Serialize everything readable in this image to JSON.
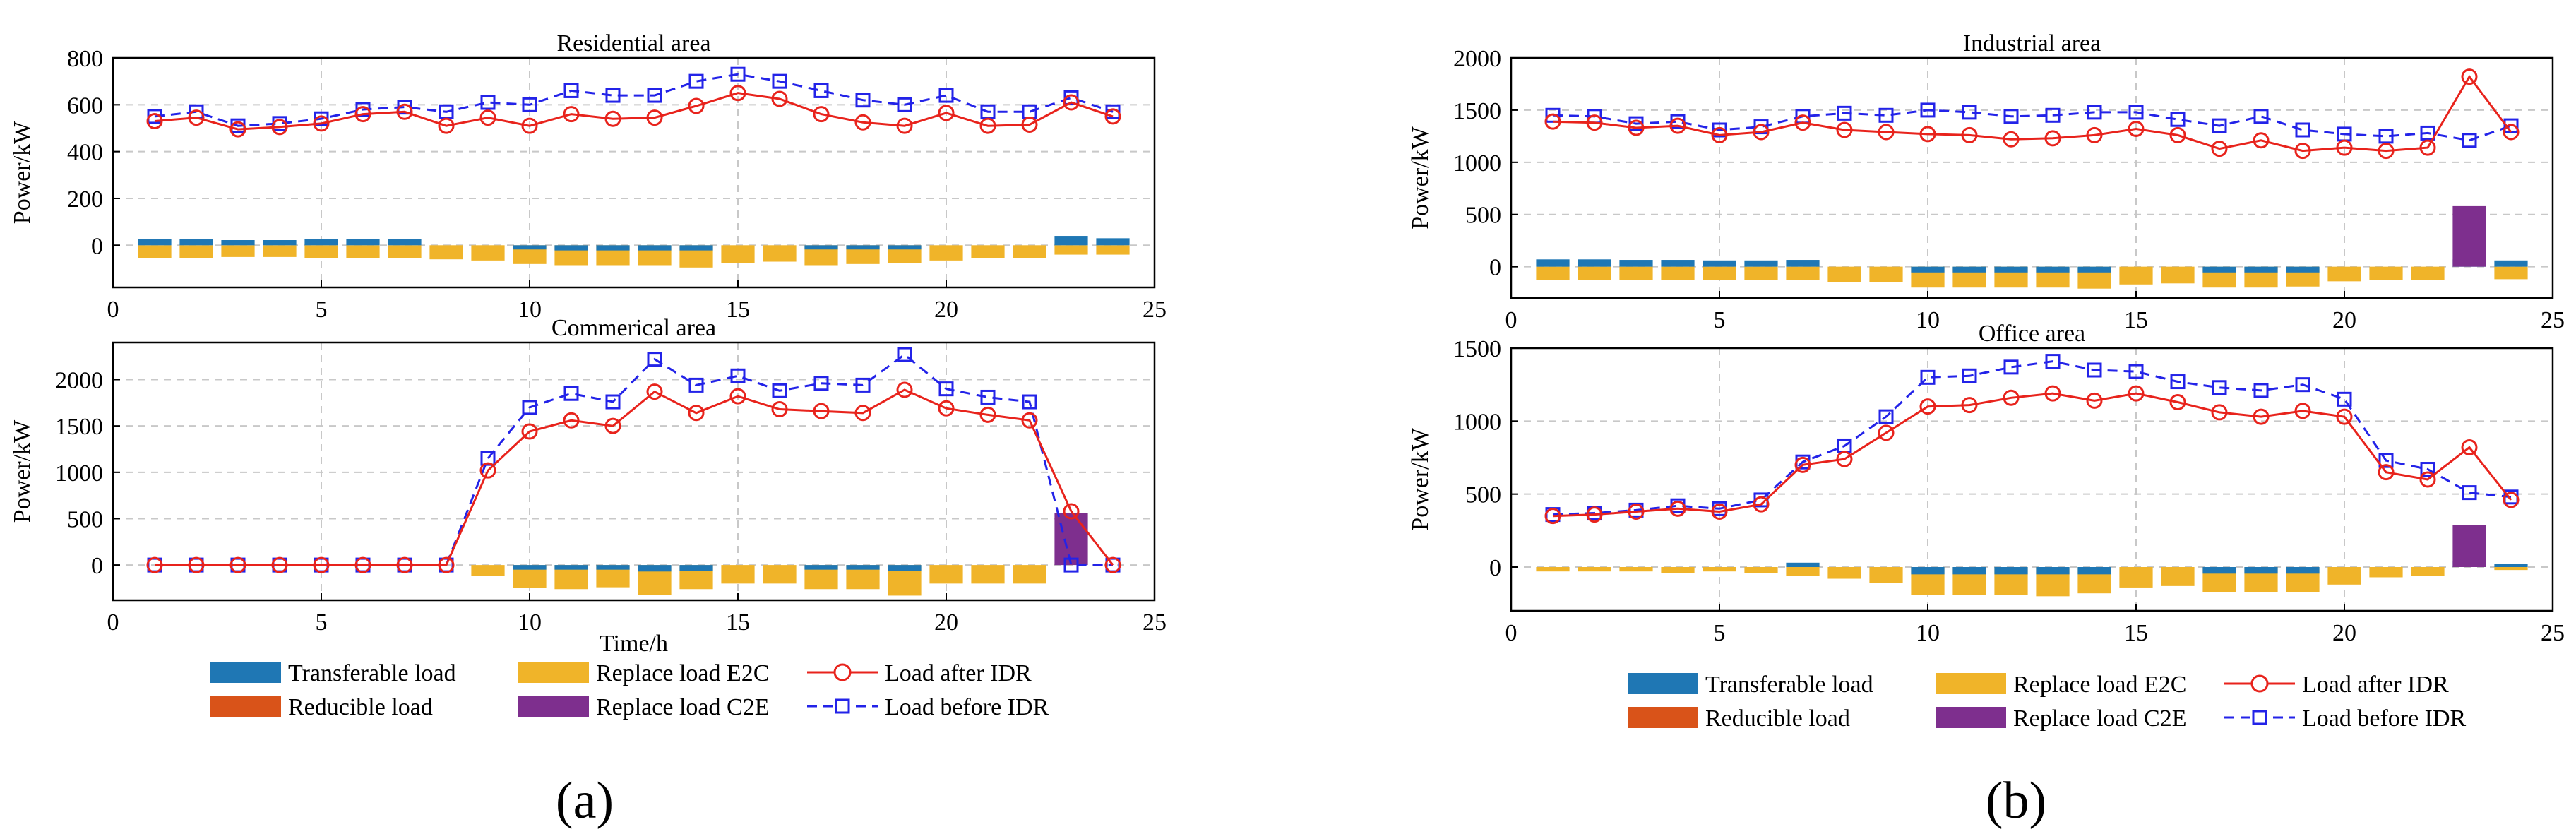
{
  "panels": [
    {
      "label": "(a)"
    },
    {
      "label": "(b)"
    }
  ],
  "legend": {
    "items": [
      {
        "key": "transferable",
        "label": "Transferable load",
        "color": "#1f77b4",
        "kind": "bar"
      },
      {
        "key": "e2c",
        "label": "Replace load E2C",
        "color": "#f0b429",
        "kind": "bar"
      },
      {
        "key": "after",
        "label": "Load after IDR",
        "color": "#e8231c",
        "kind": "line-circle"
      },
      {
        "key": "reducible",
        "label": "Reducible load",
        "color": "#d95319",
        "kind": "bar"
      },
      {
        "key": "c2e",
        "label": "Replace load C2E",
        "color": "#7e2f8e",
        "kind": "bar"
      },
      {
        "key": "before",
        "label": "Load before IDR",
        "color": "#2323e8",
        "kind": "line-square"
      }
    ]
  },
  "chart_data": [
    {
      "type": "line+bar",
      "title": "Residential area",
      "xlabel": "",
      "ylabel": "Power/kW",
      "xlim": [
        0,
        25
      ],
      "ylim": [
        -180,
        800
      ],
      "xticks": [
        0,
        5,
        10,
        15,
        20,
        25
      ],
      "yticks": [
        0,
        200,
        400,
        600,
        800
      ],
      "x": [
        1,
        2,
        3,
        4,
        5,
        6,
        7,
        8,
        9,
        10,
        11,
        12,
        13,
        14,
        15,
        16,
        17,
        18,
        19,
        20,
        21,
        22,
        23,
        24
      ],
      "series": [
        {
          "name": "Load before IDR",
          "values": [
            550,
            570,
            510,
            520,
            540,
            580,
            590,
            570,
            610,
            600,
            660,
            640,
            640,
            700,
            730,
            700,
            660,
            620,
            600,
            640,
            570,
            570,
            630,
            570
          ]
        },
        {
          "name": "Load after IDR",
          "values": [
            530,
            545,
            495,
            505,
            520,
            560,
            570,
            510,
            545,
            510,
            560,
            540,
            545,
            595,
            650,
            625,
            560,
            525,
            510,
            565,
            510,
            515,
            610,
            550
          ]
        },
        {
          "name": "Transferable load",
          "values": [
            25,
            25,
            22,
            22,
            25,
            25,
            25,
            0,
            0,
            -18,
            -22,
            -22,
            -22,
            -22,
            0,
            0,
            -18,
            -18,
            -18,
            0,
            0,
            0,
            40,
            30
          ]
        },
        {
          "name": "Replace load E2C",
          "values": [
            -55,
            -55,
            -50,
            -50,
            -55,
            -55,
            -55,
            -60,
            -65,
            -80,
            -85,
            -85,
            -85,
            -95,
            -75,
            -70,
            -85,
            -80,
            -75,
            -65,
            -55,
            -55,
            -40,
            -40
          ]
        },
        {
          "name": "Reducible load",
          "values": [
            0,
            0,
            0,
            0,
            0,
            0,
            0,
            0,
            0,
            0,
            0,
            0,
            0,
            0,
            0,
            0,
            0,
            0,
            0,
            0,
            0,
            0,
            0,
            0
          ]
        },
        {
          "name": "Replace load C2E",
          "values": [
            0,
            0,
            0,
            0,
            0,
            0,
            0,
            0,
            0,
            0,
            0,
            0,
            0,
            0,
            0,
            0,
            0,
            0,
            0,
            0,
            0,
            0,
            0,
            0
          ]
        }
      ]
    },
    {
      "type": "line+bar",
      "title": "Commerical area",
      "xlabel": "Time/h",
      "ylabel": "Power/kW",
      "xlim": [
        0,
        25
      ],
      "ylim": [
        -380,
        2400
      ],
      "xticks": [
        0,
        5,
        10,
        15,
        20,
        25
      ],
      "yticks": [
        0,
        500,
        1000,
        1500,
        2000
      ],
      "x": [
        1,
        2,
        3,
        4,
        5,
        6,
        7,
        8,
        9,
        10,
        11,
        12,
        13,
        14,
        15,
        16,
        17,
        18,
        19,
        20,
        21,
        22,
        23,
        24
      ],
      "series": [
        {
          "name": "Load before IDR",
          "values": [
            0,
            0,
            0,
            0,
            0,
            0,
            0,
            0,
            1150,
            1700,
            1850,
            1760,
            2220,
            1940,
            2040,
            1880,
            1960,
            1940,
            2270,
            1900,
            1810,
            1760,
            0,
            0
          ]
        },
        {
          "name": "Load after IDR",
          "values": [
            0,
            0,
            0,
            0,
            0,
            0,
            0,
            0,
            1020,
            1440,
            1560,
            1500,
            1870,
            1640,
            1820,
            1680,
            1660,
            1640,
            1890,
            1690,
            1620,
            1560,
            580,
            0
          ]
        },
        {
          "name": "Transferable load",
          "values": [
            0,
            0,
            0,
            0,
            0,
            0,
            0,
            0,
            0,
            -50,
            -50,
            -50,
            -70,
            -60,
            0,
            0,
            -50,
            -50,
            -60,
            0,
            0,
            0,
            0,
            0
          ]
        },
        {
          "name": "Replace load E2C",
          "values": [
            0,
            0,
            0,
            0,
            0,
            0,
            0,
            0,
            -120,
            -250,
            -260,
            -240,
            -320,
            -260,
            -200,
            -200,
            -260,
            -260,
            -330,
            -200,
            -200,
            -200,
            0,
            0
          ]
        },
        {
          "name": "Reducible load",
          "values": [
            0,
            0,
            0,
            0,
            0,
            0,
            0,
            0,
            0,
            0,
            0,
            0,
            0,
            0,
            0,
            0,
            0,
            0,
            0,
            0,
            0,
            0,
            0,
            0
          ]
        },
        {
          "name": "Replace load C2E",
          "values": [
            0,
            0,
            0,
            0,
            0,
            0,
            0,
            0,
            0,
            0,
            0,
            0,
            0,
            0,
            0,
            0,
            0,
            0,
            0,
            0,
            0,
            0,
            560,
            0
          ]
        }
      ]
    },
    {
      "type": "line+bar",
      "title": "Industrial area",
      "xlabel": "",
      "ylabel": "Power/kW",
      "xlim": [
        0,
        25
      ],
      "ylim": [
        -300,
        2000
      ],
      "xticks": [
        0,
        5,
        10,
        15,
        20,
        25
      ],
      "yticks": [
        0,
        500,
        1000,
        1500,
        2000
      ],
      "x": [
        1,
        2,
        3,
        4,
        5,
        6,
        7,
        8,
        9,
        10,
        11,
        12,
        13,
        14,
        15,
        16,
        17,
        18,
        19,
        20,
        21,
        22,
        23,
        24
      ],
      "series": [
        {
          "name": "Load before IDR",
          "values": [
            1450,
            1440,
            1370,
            1390,
            1310,
            1340,
            1440,
            1470,
            1450,
            1500,
            1480,
            1440,
            1450,
            1480,
            1480,
            1410,
            1350,
            1440,
            1310,
            1270,
            1250,
            1280,
            1210,
            1350
          ]
        },
        {
          "name": "Load after IDR",
          "values": [
            1390,
            1380,
            1330,
            1350,
            1260,
            1290,
            1380,
            1310,
            1290,
            1270,
            1260,
            1220,
            1230,
            1260,
            1320,
            1260,
            1130,
            1210,
            1110,
            1140,
            1110,
            1140,
            1820,
            1290
          ]
        },
        {
          "name": "Transferable load",
          "values": [
            70,
            70,
            65,
            65,
            60,
            60,
            65,
            0,
            0,
            -55,
            -55,
            -55,
            -55,
            -55,
            0,
            0,
            -55,
            -55,
            -55,
            0,
            0,
            0,
            70,
            60
          ]
        },
        {
          "name": "Replace load E2C",
          "values": [
            -130,
            -130,
            -130,
            -130,
            -130,
            -130,
            -130,
            -150,
            -150,
            -200,
            -200,
            -200,
            -200,
            -210,
            -170,
            -160,
            -200,
            -200,
            -190,
            -140,
            -130,
            -130,
            0,
            -120
          ]
        },
        {
          "name": "Reducible load",
          "values": [
            0,
            0,
            0,
            0,
            0,
            0,
            0,
            0,
            0,
            0,
            0,
            0,
            0,
            0,
            0,
            0,
            0,
            0,
            0,
            0,
            0,
            0,
            0,
            0
          ]
        },
        {
          "name": "Replace load C2E",
          "values": [
            0,
            0,
            0,
            0,
            0,
            0,
            0,
            0,
            0,
            0,
            0,
            0,
            0,
            0,
            0,
            0,
            0,
            0,
            0,
            0,
            0,
            0,
            580,
            0
          ]
        }
      ]
    },
    {
      "type": "line+bar",
      "title": "Office area",
      "xlabel": "",
      "ylabel": "Power/kW",
      "xlim": [
        0,
        25
      ],
      "ylim": [
        -300,
        1500
      ],
      "xticks": [
        0,
        5,
        10,
        15,
        20,
        25
      ],
      "yticks": [
        0,
        500,
        1000,
        1500
      ],
      "x": [
        1,
        2,
        3,
        4,
        5,
        6,
        7,
        8,
        9,
        10,
        11,
        12,
        13,
        14,
        15,
        16,
        17,
        18,
        19,
        20,
        21,
        22,
        23,
        24
      ],
      "series": [
        {
          "name": "Load before IDR",
          "values": [
            360,
            370,
            390,
            420,
            400,
            460,
            720,
            830,
            1030,
            1300,
            1310,
            1370,
            1410,
            1350,
            1340,
            1270,
            1230,
            1210,
            1250,
            1150,
            730,
            670,
            510,
            480
          ]
        },
        {
          "name": "Load after IDR",
          "values": [
            350,
            360,
            380,
            400,
            380,
            430,
            700,
            740,
            920,
            1100,
            1110,
            1160,
            1190,
            1140,
            1190,
            1130,
            1060,
            1030,
            1070,
            1030,
            650,
            600,
            820,
            460
          ]
        },
        {
          "name": "Transferable load",
          "values": [
            0,
            0,
            0,
            0,
            0,
            0,
            30,
            0,
            0,
            -50,
            -50,
            -50,
            -50,
            -50,
            0,
            0,
            -45,
            -45,
            -45,
            0,
            0,
            0,
            40,
            20
          ]
        },
        {
          "name": "Replace load E2C",
          "values": [
            -30,
            -30,
            -30,
            -40,
            -30,
            -40,
            -60,
            -80,
            -110,
            -190,
            -190,
            -190,
            -200,
            -180,
            -140,
            -130,
            -170,
            -170,
            -170,
            -120,
            -70,
            -60,
            0,
            -20
          ]
        },
        {
          "name": "Reducible load",
          "values": [
            0,
            0,
            0,
            0,
            0,
            0,
            0,
            0,
            0,
            0,
            0,
            0,
            0,
            0,
            0,
            0,
            0,
            0,
            0,
            0,
            0,
            0,
            0,
            0
          ]
        },
        {
          "name": "Replace load C2E",
          "values": [
            0,
            0,
            0,
            0,
            0,
            0,
            0,
            0,
            0,
            0,
            0,
            0,
            0,
            0,
            0,
            0,
            0,
            0,
            0,
            0,
            0,
            0,
            290,
            0
          ]
        }
      ]
    }
  ]
}
